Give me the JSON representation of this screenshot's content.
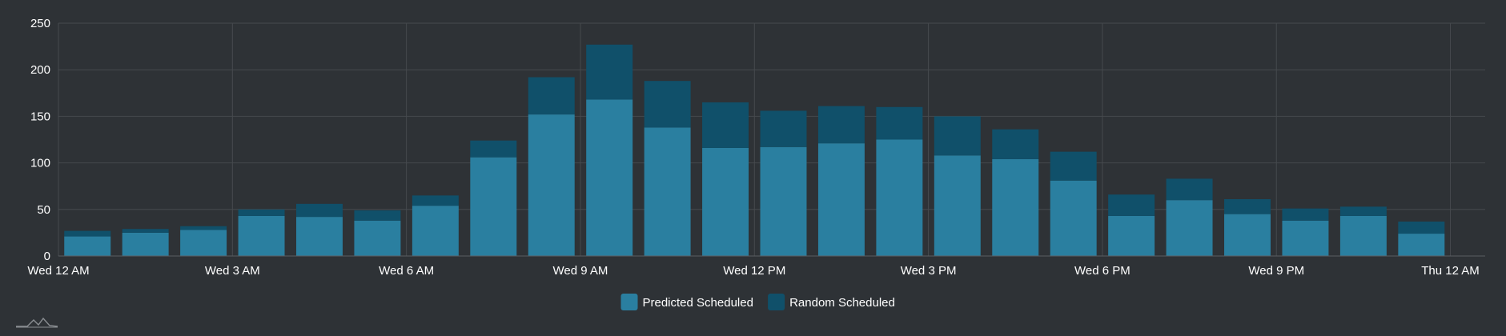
{
  "colors": {
    "background": "#2e3236",
    "grid": "#464a4e",
    "predicted": "#2a7fa0",
    "random": "#10506a",
    "text": "#ffffff",
    "logo": "#8a8e92"
  },
  "logo_icon": "mountain-wave-logo-icon",
  "chart_data": {
    "type": "bar",
    "stacked": true,
    "ylim": [
      0,
      250
    ],
    "yticks": [
      0,
      50,
      100,
      150,
      200,
      250
    ],
    "grid": true,
    "legend_position": "bottom-center",
    "x_start": "Wed 12 AM",
    "x_end": "Thu 12 AM",
    "xticks": [
      "Wed 12 AM",
      "Wed 3 AM",
      "Wed 6 AM",
      "Wed 9 AM",
      "Wed 12 PM",
      "Wed 3 PM",
      "Wed 6 PM",
      "Wed 9 PM",
      "Thu 12 AM"
    ],
    "series": [
      {
        "name": "Predicted Scheduled",
        "values": [
          21,
          25,
          28,
          43,
          42,
          38,
          54,
          106,
          152,
          168,
          138,
          116,
          117,
          121,
          125,
          108,
          104,
          81,
          43,
          60,
          45,
          38,
          43,
          24
        ]
      },
      {
        "name": "Random Scheduled",
        "values": [
          6,
          4,
          4,
          7,
          14,
          11,
          11,
          18,
          40,
          59,
          50,
          49,
          39,
          40,
          35,
          42,
          32,
          31,
          23,
          23,
          16,
          13,
          10,
          13
        ]
      }
    ]
  }
}
